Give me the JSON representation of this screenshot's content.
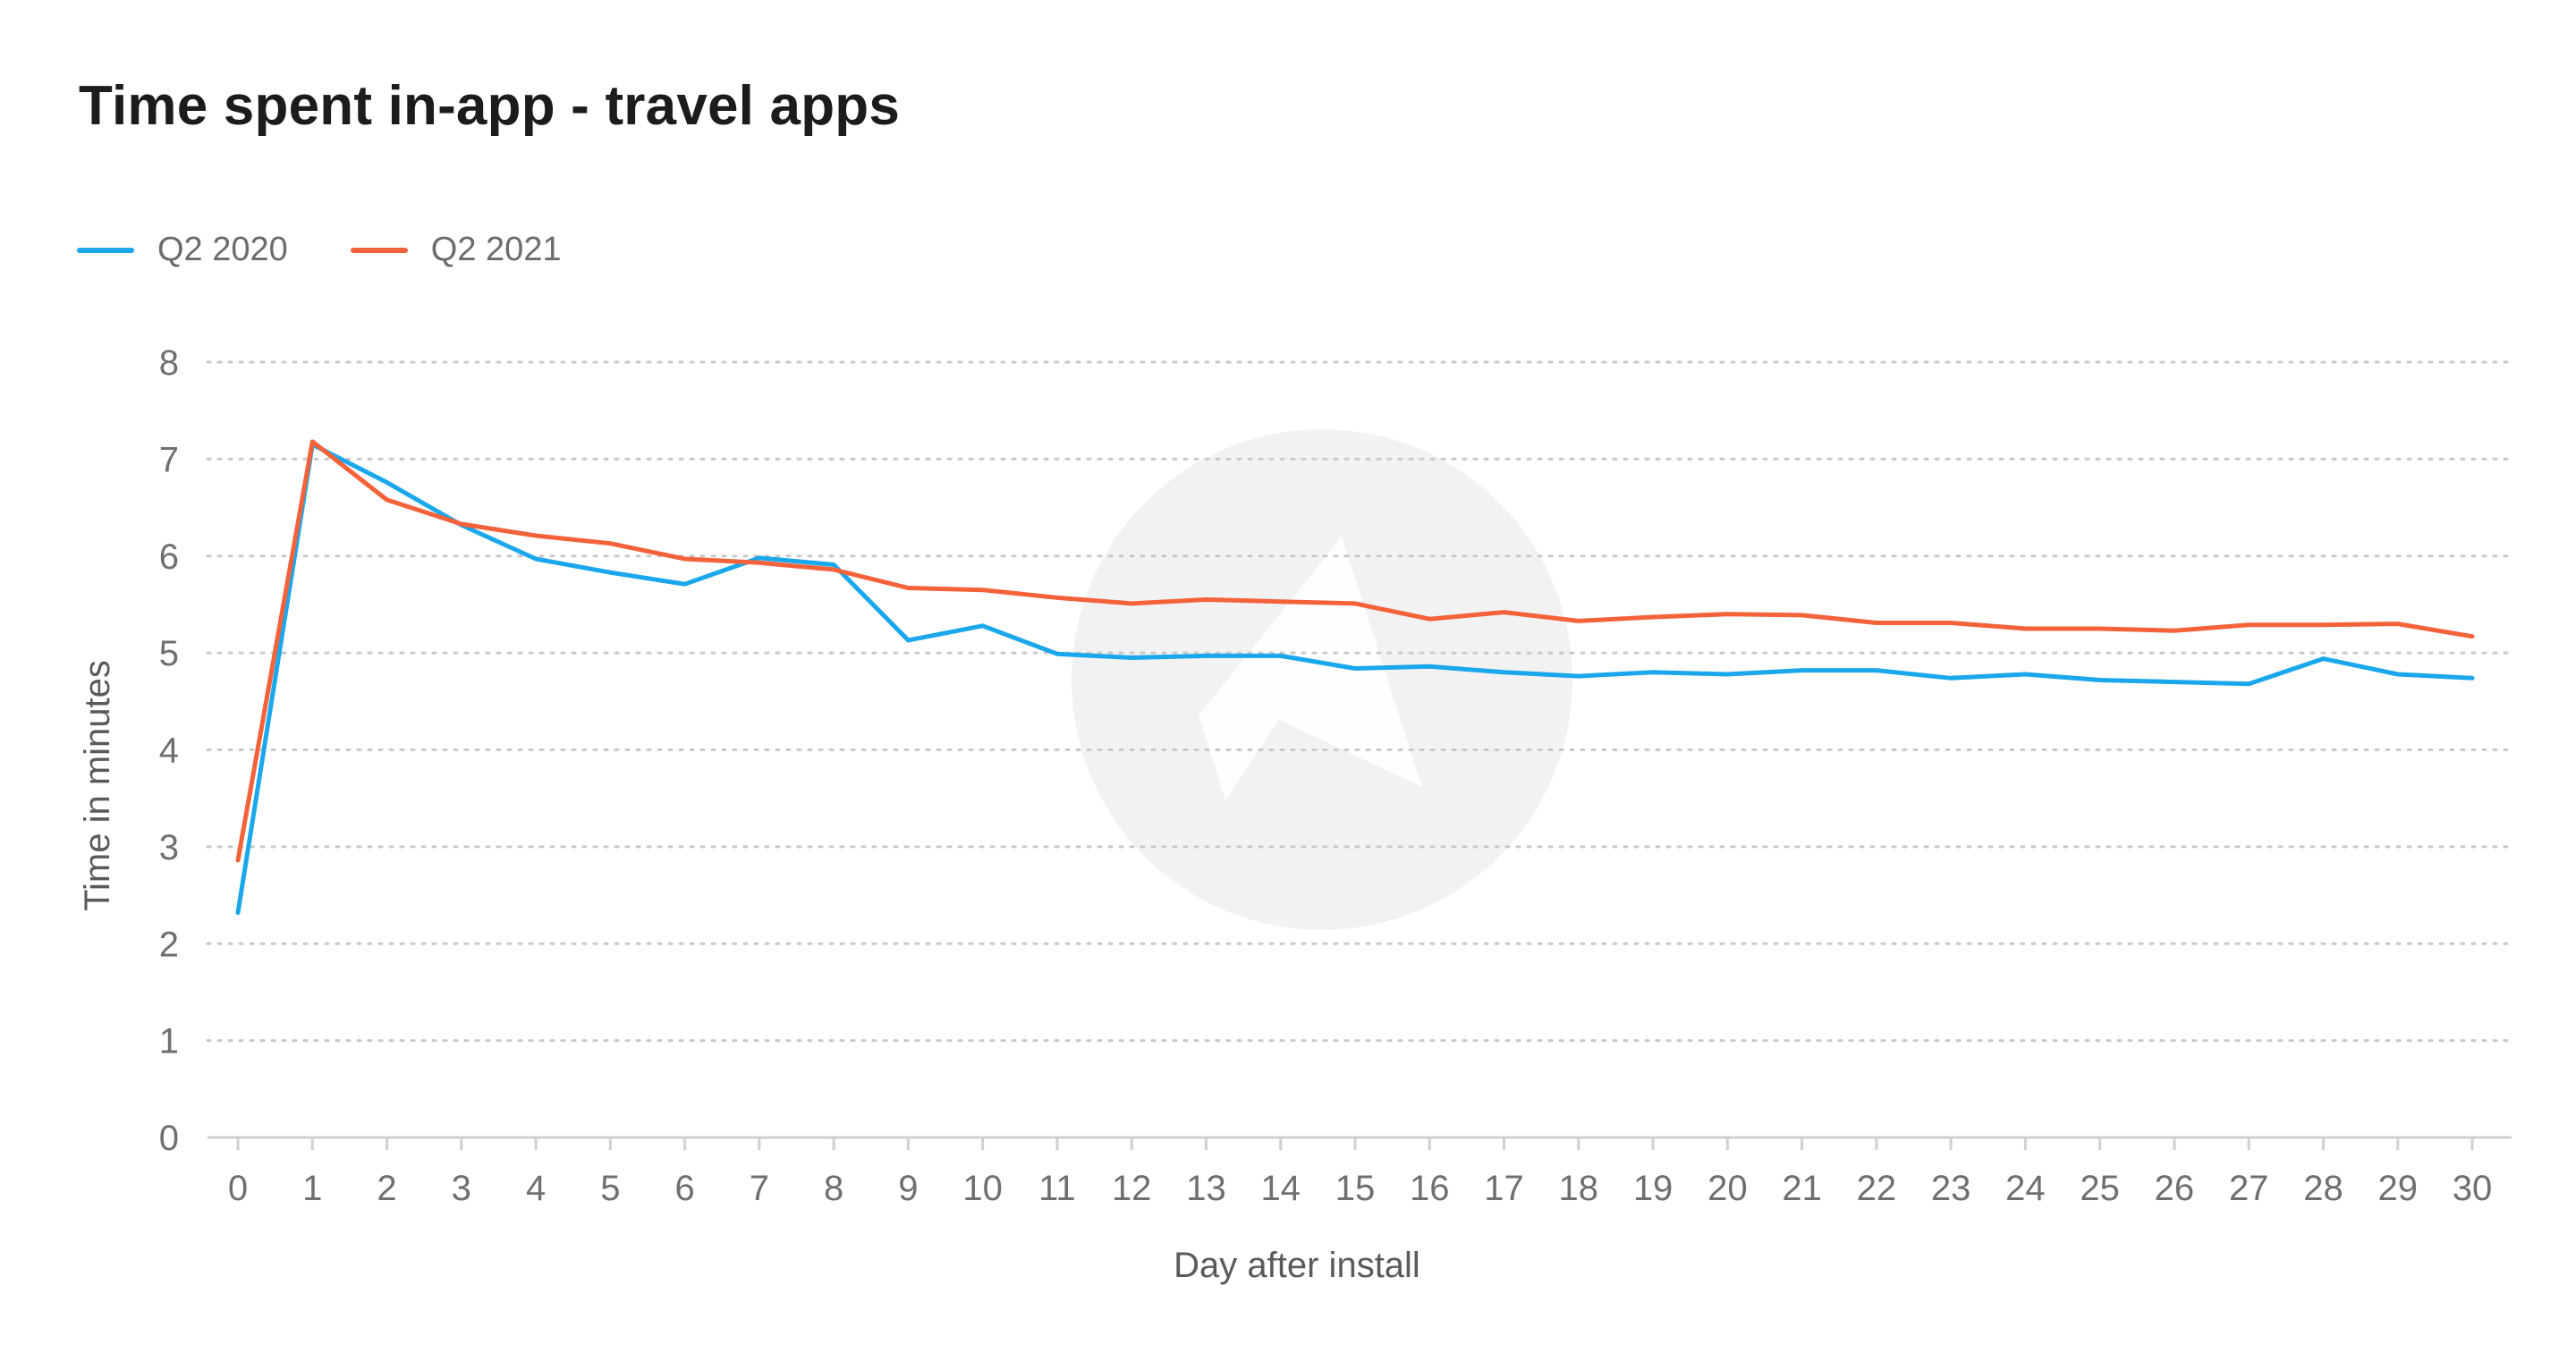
{
  "chart_data": {
    "type": "line",
    "title": "Time spent in-app - travel apps",
    "xlabel": "Day after install",
    "ylabel": "Time in minutes",
    "ylim": [
      0,
      8
    ],
    "yticks": [
      "0",
      "1",
      "2",
      "3",
      "4",
      "5",
      "6",
      "7",
      "8"
    ],
    "grid": "horizontal dotted",
    "legend_position": "top-left",
    "x": [
      "0",
      "1",
      "2",
      "3",
      "4",
      "5",
      "6",
      "7",
      "8",
      "9",
      "10",
      "11",
      "12",
      "13",
      "14",
      "15",
      "16",
      "17",
      "18",
      "19",
      "20",
      "21",
      "22",
      "23",
      "24",
      "25",
      "26",
      "27",
      "28",
      "29",
      "30"
    ],
    "series": [
      {
        "name": "Q2 2020",
        "color": "#1aa7ec",
        "values": [
          2.32,
          7.15,
          6.76,
          6.32,
          5.97,
          5.83,
          5.71,
          5.98,
          5.91,
          5.13,
          5.28,
          4.99,
          4.95,
          4.97,
          4.97,
          4.84,
          4.86,
          4.8,
          4.76,
          4.8,
          4.78,
          4.82,
          4.82,
          4.74,
          4.78,
          4.72,
          4.7,
          4.68,
          4.94,
          4.78,
          4.74
        ]
      },
      {
        "name": "Q2 2021",
        "color": "#f4623a",
        "values": [
          2.86,
          7.18,
          6.58,
          6.33,
          6.21,
          6.13,
          5.97,
          5.93,
          5.86,
          5.67,
          5.65,
          5.57,
          5.51,
          5.55,
          5.53,
          5.51,
          5.35,
          5.42,
          5.33,
          5.37,
          5.4,
          5.39,
          5.31,
          5.31,
          5.25,
          5.25,
          5.23,
          5.29,
          5.29,
          5.3,
          5.17
        ]
      }
    ]
  }
}
